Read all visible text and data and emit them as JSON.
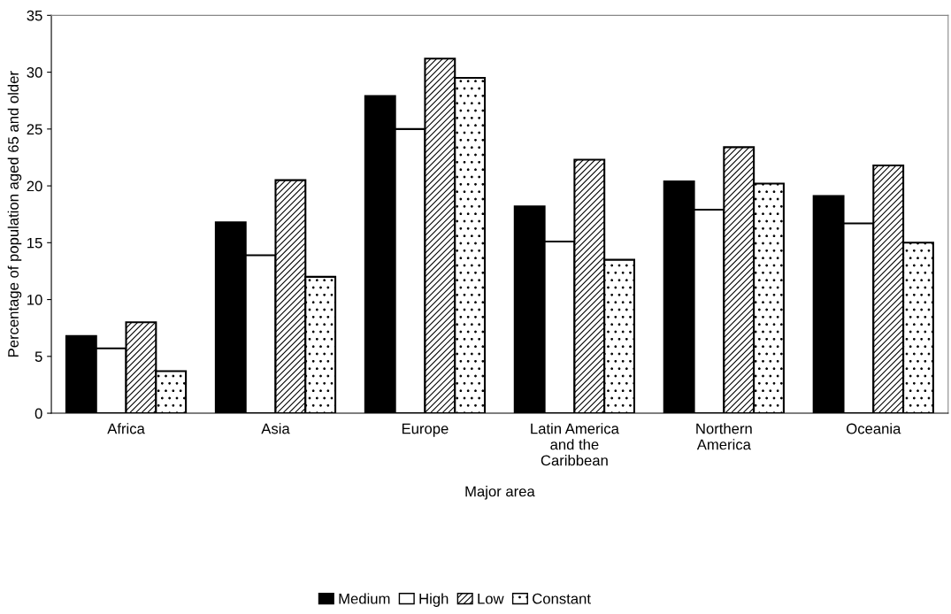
{
  "chart_data": {
    "type": "bar",
    "xlabel": "Major area",
    "ylabel": "Percentage of population aged 65 and older",
    "categories": [
      "Africa",
      "Asia",
      "Europe",
      "Latin America\nand the\nCaribbean",
      "Northern\nAmerica",
      "Oceania"
    ],
    "series": [
      {
        "name": "Medium",
        "color": "#000000",
        "values": [
          6.8,
          16.8,
          27.9,
          18.2,
          20.4,
          19.1
        ]
      },
      {
        "name": "High",
        "color": "#ffffff",
        "values": [
          5.7,
          13.9,
          25.0,
          15.1,
          17.9,
          16.7
        ]
      },
      {
        "name": "Low",
        "color": "#000000",
        "values": [
          8.0,
          20.5,
          31.2,
          22.3,
          23.4,
          21.8
        ]
      },
      {
        "name": "Constant",
        "color": "#000000",
        "values": [
          3.7,
          12.0,
          29.5,
          13.5,
          20.2,
          15.0
        ]
      }
    ],
    "ylim": [
      0,
      35
    ],
    "yticks": [
      0,
      5,
      10,
      15,
      20,
      25,
      30,
      35
    ],
    "grid": false,
    "legend": "bottom"
  }
}
